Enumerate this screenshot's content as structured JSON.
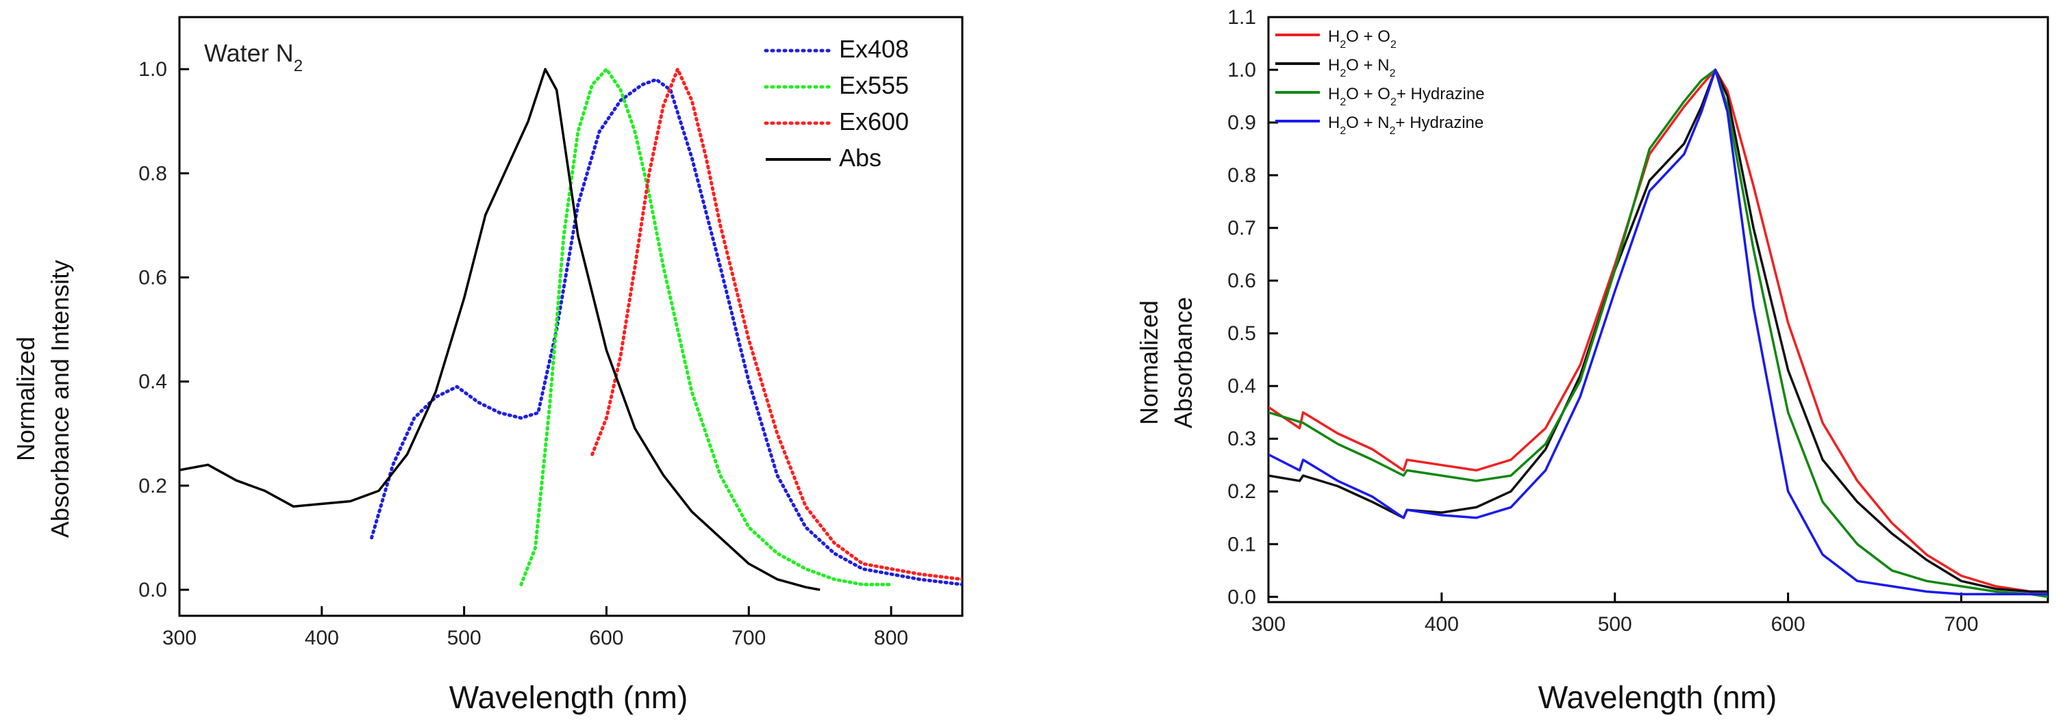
{
  "chart_data": [
    {
      "type": "line",
      "annotation": "Water N",
      "annotation_sub": "2",
      "xlabel": "Wavelength (nm)",
      "ylabel_line1": "Normalized",
      "ylabel_line2": "Absorbance and Intensity",
      "xlim": [
        300,
        850
      ],
      "ylim": [
        -0.05,
        1.1
      ],
      "xticks": [
        300,
        400,
        500,
        600,
        700,
        800
      ],
      "yticks": [
        0.0,
        0.2,
        0.4,
        0.6,
        0.8,
        1.0
      ],
      "ytick_labels": [
        "0.0",
        "0.2",
        "0.4",
        "0.6",
        "0.8",
        "1.0"
      ],
      "legend_position": "top-right",
      "series": [
        {
          "name": "Ex408",
          "color": "#1f1fe0",
          "style": "dotted",
          "x": [
            435,
            450,
            465,
            480,
            495,
            510,
            525,
            540,
            552,
            565,
            580,
            595,
            610,
            625,
            635,
            645,
            660,
            680,
            700,
            720,
            740,
            760,
            780,
            800,
            820,
            850
          ],
          "y": [
            0.1,
            0.24,
            0.33,
            0.37,
            0.39,
            0.36,
            0.34,
            0.33,
            0.34,
            0.5,
            0.74,
            0.88,
            0.94,
            0.97,
            0.98,
            0.96,
            0.83,
            0.62,
            0.4,
            0.22,
            0.12,
            0.07,
            0.04,
            0.03,
            0.02,
            0.01
          ]
        },
        {
          "name": "Ex555",
          "color": "#22ee22",
          "style": "dotted",
          "x": [
            540,
            550,
            560,
            570,
            580,
            590,
            600,
            610,
            620,
            630,
            640,
            660,
            680,
            700,
            720,
            740,
            760,
            780,
            800
          ],
          "y": [
            0.01,
            0.08,
            0.35,
            0.68,
            0.88,
            0.97,
            1.0,
            0.96,
            0.88,
            0.76,
            0.62,
            0.38,
            0.22,
            0.12,
            0.07,
            0.04,
            0.02,
            0.01,
            0.01
          ]
        },
        {
          "name": "Ex600",
          "color": "#ff2020",
          "style": "dotted",
          "x": [
            590,
            600,
            610,
            620,
            630,
            640,
            650,
            660,
            670,
            680,
            700,
            720,
            740,
            760,
            780,
            800,
            820,
            850
          ],
          "y": [
            0.26,
            0.33,
            0.45,
            0.62,
            0.8,
            0.93,
            1.0,
            0.94,
            0.83,
            0.7,
            0.48,
            0.3,
            0.16,
            0.09,
            0.05,
            0.04,
            0.03,
            0.02
          ]
        },
        {
          "name": "Abs",
          "color": "#000000",
          "style": "solid",
          "x": [
            300,
            320,
            340,
            360,
            380,
            400,
            420,
            440,
            460,
            480,
            500,
            515,
            530,
            545,
            557,
            565,
            580,
            600,
            620,
            640,
            660,
            680,
            700,
            720,
            740,
            750
          ],
          "y": [
            0.23,
            0.24,
            0.21,
            0.19,
            0.16,
            0.165,
            0.17,
            0.19,
            0.26,
            0.38,
            0.56,
            0.72,
            0.81,
            0.9,
            1.0,
            0.96,
            0.68,
            0.46,
            0.31,
            0.22,
            0.15,
            0.1,
            0.05,
            0.02,
            0.005,
            0.0
          ]
        }
      ]
    },
    {
      "type": "line",
      "xlabel": "Wavelength (nm)",
      "ylabel_line1": "Normalized",
      "ylabel_line2": "Absorbance",
      "xlim": [
        300,
        750
      ],
      "ylim": [
        -0.01,
        1.1
      ],
      "xticks": [
        300,
        400,
        500,
        600,
        700
      ],
      "yticks": [
        0.0,
        0.1,
        0.2,
        0.3,
        0.4,
        0.5,
        0.6,
        0.7,
        0.8,
        0.9,
        1.0,
        1.1
      ],
      "ytick_labels": [
        "0.0",
        "0.1",
        "0.2",
        "0.3",
        "0.4",
        "0.5",
        "0.6",
        "0.7",
        "0.8",
        "0.9",
        "1.0",
        "1.1"
      ],
      "legend_position": "top-left",
      "series": [
        {
          "name": "H2O + O2",
          "color": "#ee2222",
          "style": "solid",
          "legend_parts": [
            [
              "H",
              ""
            ],
            [
              "2",
              "sub"
            ],
            [
              "O + O",
              ""
            ],
            [
              "2",
              "sub"
            ]
          ],
          "x": [
            300,
            318,
            320,
            340,
            360,
            378,
            380,
            400,
            420,
            440,
            460,
            480,
            500,
            520,
            540,
            550,
            558,
            565,
            580,
            600,
            620,
            640,
            660,
            680,
            700,
            720,
            740,
            750
          ],
          "y": [
            0.36,
            0.32,
            0.35,
            0.31,
            0.28,
            0.24,
            0.26,
            0.25,
            0.24,
            0.26,
            0.32,
            0.44,
            0.63,
            0.84,
            0.93,
            0.97,
            1.0,
            0.96,
            0.78,
            0.52,
            0.33,
            0.22,
            0.14,
            0.08,
            0.04,
            0.02,
            0.01,
            0.01
          ]
        },
        {
          "name": "H2O + N2",
          "color": "#111111",
          "style": "solid",
          "legend_parts": [
            [
              "H",
              ""
            ],
            [
              "2",
              "sub"
            ],
            [
              "O + N",
              ""
            ],
            [
              "2",
              "sub"
            ]
          ],
          "x": [
            300,
            318,
            320,
            340,
            360,
            378,
            380,
            400,
            420,
            440,
            460,
            480,
            500,
            520,
            540,
            550,
            558,
            565,
            580,
            600,
            620,
            640,
            660,
            680,
            700,
            720,
            740,
            750
          ],
          "y": [
            0.23,
            0.22,
            0.23,
            0.21,
            0.18,
            0.15,
            0.165,
            0.16,
            0.17,
            0.2,
            0.28,
            0.42,
            0.62,
            0.79,
            0.86,
            0.93,
            1.0,
            0.95,
            0.7,
            0.43,
            0.26,
            0.18,
            0.12,
            0.07,
            0.03,
            0.015,
            0.01,
            0.01
          ]
        },
        {
          "name": "H2O + O2+ Hydrazine",
          "color": "#118811",
          "style": "solid",
          "legend_parts": [
            [
              "H",
              ""
            ],
            [
              "2",
              "sub"
            ],
            [
              "O + O",
              ""
            ],
            [
              "2",
              "sub"
            ],
            [
              "+ Hydrazine",
              ""
            ]
          ],
          "x": [
            300,
            320,
            340,
            360,
            378,
            380,
            400,
            420,
            440,
            460,
            480,
            500,
            520,
            540,
            550,
            558,
            565,
            580,
            600,
            620,
            640,
            660,
            680,
            700,
            720,
            740,
            750
          ],
          "y": [
            0.35,
            0.33,
            0.29,
            0.26,
            0.23,
            0.24,
            0.23,
            0.22,
            0.23,
            0.29,
            0.41,
            0.62,
            0.85,
            0.94,
            0.98,
            1.0,
            0.93,
            0.66,
            0.35,
            0.18,
            0.1,
            0.05,
            0.03,
            0.02,
            0.01,
            0.005,
            0.0
          ]
        },
        {
          "name": "H2O + N2+ Hydrazine",
          "color": "#1a1aee",
          "style": "solid",
          "legend_parts": [
            [
              "H",
              ""
            ],
            [
              "2",
              "sub"
            ],
            [
              "O + N",
              ""
            ],
            [
              "2",
              "sub"
            ],
            [
              "+ Hydrazine",
              ""
            ]
          ],
          "x": [
            300,
            318,
            320,
            340,
            360,
            378,
            380,
            400,
            420,
            440,
            460,
            480,
            500,
            520,
            540,
            550,
            558,
            565,
            580,
            600,
            620,
            640,
            660,
            680,
            700,
            720,
            740,
            750
          ],
          "y": [
            0.27,
            0.24,
            0.26,
            0.22,
            0.19,
            0.15,
            0.165,
            0.155,
            0.15,
            0.17,
            0.24,
            0.38,
            0.58,
            0.77,
            0.84,
            0.92,
            1.0,
            0.92,
            0.55,
            0.2,
            0.08,
            0.03,
            0.02,
            0.01,
            0.005,
            0.005,
            0.005,
            0.005
          ]
        }
      ]
    }
  ]
}
